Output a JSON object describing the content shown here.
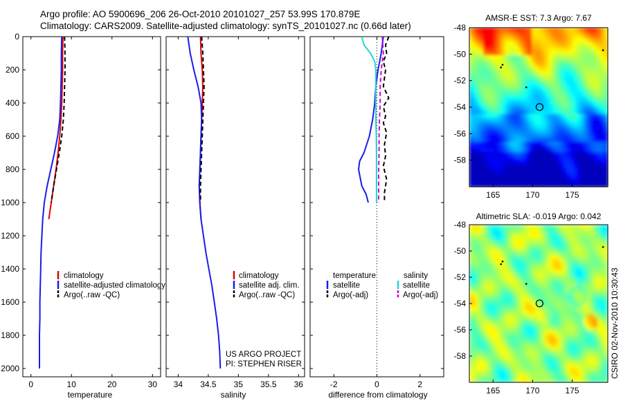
{
  "title": {
    "line1": "Argo profile: AO 5900696_206 26-Oct-2010 20101027_257 53.99S 170.879E",
    "line2": "Climatology: CARS2009. Satellite-adjusted climatology: synTS_20101027.nc (0.66d later)"
  },
  "colors": {
    "climatology": "#e00000",
    "satellite": "#1a1aee",
    "argo": "#000000",
    "sal_satellite": "#22d6d6",
    "sal_argo": "#d000d0"
  },
  "chart_data": [
    {
      "type": "line",
      "title": "",
      "xlabel": "temperature",
      "ylabel": "",
      "xlim": [
        -2,
        32
      ],
      "ylim": [
        0,
        2050
      ],
      "y_reversed": true,
      "xticks": [
        "0",
        "10",
        "20",
        "30"
      ],
      "yticks": [
        "0",
        "200",
        "400",
        "600",
        "800",
        "1000",
        "1200",
        "1400",
        "1600",
        "1800",
        "2000"
      ],
      "legend": [
        "climatology",
        "satellite-adjusted climatology",
        "Argo(..raw -QC)"
      ],
      "series": [
        {
          "name": "climatology",
          "style": "solid",
          "color": "#e00000",
          "x": [
            7.9,
            7.8,
            7.8,
            7.7,
            7.6,
            7.4,
            7.1,
            6.7,
            6.2,
            5.6,
            5.0,
            4.4
          ],
          "y": [
            0,
            100,
            200,
            300,
            400,
            500,
            600,
            700,
            800,
            900,
            1000,
            1100
          ]
        },
        {
          "name": "satellite-adjusted climatology",
          "style": "solid",
          "color": "#1a1aee",
          "x": [
            7.6,
            7.5,
            7.5,
            7.4,
            7.3,
            7.1,
            6.6,
            5.8,
            4.9,
            4.0,
            3.3,
            2.9,
            2.7,
            2.5,
            2.4,
            2.3,
            2.2,
            2.2,
            2.1,
            2.1,
            2.1
          ],
          "y": [
            0,
            100,
            200,
            300,
            400,
            500,
            600,
            700,
            800,
            900,
            1000,
            1100,
            1200,
            1300,
            1400,
            1500,
            1600,
            1700,
            1800,
            1900,
            2000
          ]
        },
        {
          "name": "Argo(..raw -QC)",
          "style": "dashed",
          "color": "#000000",
          "x": [
            8.3,
            8.4,
            8.4,
            8.3,
            8.2,
            8.0,
            7.6,
            7.0,
            6.3,
            5.6,
            5.0
          ],
          "y": [
            0,
            100,
            200,
            300,
            400,
            500,
            600,
            700,
            800,
            900,
            1000
          ]
        }
      ]
    },
    {
      "type": "line",
      "title": "",
      "xlabel": "salinity",
      "ylabel": "",
      "xlim": [
        33.8,
        36.1
      ],
      "ylim": [
        0,
        2050
      ],
      "y_reversed": true,
      "xticks": [
        "34",
        "34.5",
        "35",
        "35.5",
        "36"
      ],
      "legend": [
        "climatology",
        "satellite adj. clim.",
        "Argo(..raw -QC)"
      ],
      "series": [
        {
          "name": "climatology",
          "style": "solid",
          "color": "#e00000",
          "x": [
            34.37,
            34.38,
            34.4,
            34.41,
            34.4,
            34.39,
            34.38,
            34.37,
            34.36,
            34.35,
            34.36,
            34.38
          ],
          "y": [
            0,
            100,
            200,
            300,
            400,
            500,
            600,
            700,
            800,
            900,
            1000,
            1100
          ]
        },
        {
          "name": "satellite adj. clim.",
          "style": "solid",
          "color": "#1a1aee",
          "x": [
            34.16,
            34.2,
            34.26,
            34.33,
            34.38,
            34.39,
            34.38,
            34.37,
            34.36,
            34.35,
            34.36,
            34.38,
            34.42,
            34.46,
            34.51,
            34.56,
            34.6,
            34.64,
            34.67,
            34.69,
            34.7
          ],
          "y": [
            0,
            100,
            200,
            300,
            400,
            500,
            600,
            700,
            800,
            900,
            1000,
            1100,
            1200,
            1300,
            1400,
            1500,
            1600,
            1700,
            1800,
            1900,
            2000
          ]
        },
        {
          "name": "Argo(..raw -QC)",
          "style": "dashed",
          "color": "#000000",
          "x": [
            34.39,
            34.41,
            34.42,
            34.43,
            34.42,
            34.41,
            34.4,
            34.39,
            34.38,
            34.37,
            34.37
          ],
          "y": [
            0,
            100,
            200,
            300,
            400,
            500,
            600,
            700,
            800,
            900,
            1000
          ]
        }
      ],
      "annotations": [
        "US ARGO PROJECT",
        "PI: STEPHEN RISER"
      ]
    },
    {
      "type": "line",
      "title": "",
      "xlabel": "difference from climatology",
      "ylabel": "",
      "xlim": [
        -3.1,
        3.1
      ],
      "ylim": [
        0,
        2050
      ],
      "y_reversed": true,
      "xticks": [
        "-2",
        "0",
        "2"
      ],
      "zero_line": true,
      "legend_headers": [
        "temperature",
        "salinity"
      ],
      "legend": [
        "satellite",
        "Argo(-adj)",
        "satellite",
        "Argo(-adj)"
      ],
      "series": [
        {
          "name": "temperature satellite",
          "style": "solid",
          "color": "#1a1aee",
          "x": [
            0.3,
            0.2,
            0.05,
            -0.05,
            -0.1,
            -0.2,
            -0.35,
            -0.6,
            -0.8,
            -0.85,
            -0.7,
            -0.5,
            -0.4
          ],
          "y": [
            0,
            100,
            200,
            300,
            400,
            500,
            600,
            700,
            750,
            800,
            900,
            950,
            1000
          ]
        },
        {
          "name": "temperature Argo(-adj)",
          "style": "dashed",
          "color": "#000000",
          "x": [
            0.55,
            0.4,
            0.45,
            0.3,
            0.4,
            0.3,
            0.55,
            0.3,
            0.4,
            0.3,
            0.45,
            0.35,
            0.4,
            0.3,
            0.45,
            0.35,
            0.35
          ],
          "y": [
            0,
            50,
            100,
            150,
            200,
            300,
            370,
            420,
            480,
            520,
            580,
            650,
            720,
            780,
            860,
            940,
            1000
          ]
        },
        {
          "name": "salinity satellite",
          "style": "solid",
          "color": "#22d6d6",
          "x": [
            -0.7,
            -0.6,
            -0.3,
            -0.1,
            -0.05,
            -0.05,
            -0.05,
            -0.05,
            -0.03,
            -0.02,
            -0.02,
            -0.02
          ],
          "y": [
            0,
            50,
            100,
            150,
            200,
            300,
            400,
            500,
            600,
            700,
            850,
            1000
          ]
        },
        {
          "name": "salinity Argo(-adj)",
          "style": "dashed",
          "color": "#d000d0",
          "x": [
            0.25,
            0.3,
            0.2,
            0.15,
            0.15,
            0.12,
            0.1,
            0.1,
            0.08,
            0.08,
            0.08
          ],
          "y": [
            0,
            100,
            200,
            300,
            400,
            500,
            600,
            700,
            800,
            900,
            1000
          ]
        }
      ]
    },
    {
      "type": "heatmap",
      "title": "AMSR-E SST: 7.3 Argo: 7.67",
      "xlim": [
        162,
        179.5
      ],
      "ylim": [
        -60,
        -48
      ],
      "xticks": [
        "165",
        "170",
        "175"
      ],
      "yticks": [
        "-48",
        "-50",
        "-52",
        "-54",
        "-56",
        "-58"
      ],
      "marker": {
        "lon": 170.879,
        "lat": -53.99
      }
    },
    {
      "type": "heatmap",
      "title": "Altimetric SLA: -0.019 Argo: 0.042",
      "xlim": [
        162,
        179.5
      ],
      "ylim": [
        -60,
        -48
      ],
      "xticks": [
        "165",
        "170",
        "175"
      ],
      "yticks": [
        "-48",
        "-50",
        "-52",
        "-54",
        "-56",
        "-58"
      ],
      "marker": {
        "lon": 170.879,
        "lat": -53.99
      }
    }
  ],
  "footer": {
    "credit": "CSIRO 02-Nov-2010 10:30:43"
  }
}
